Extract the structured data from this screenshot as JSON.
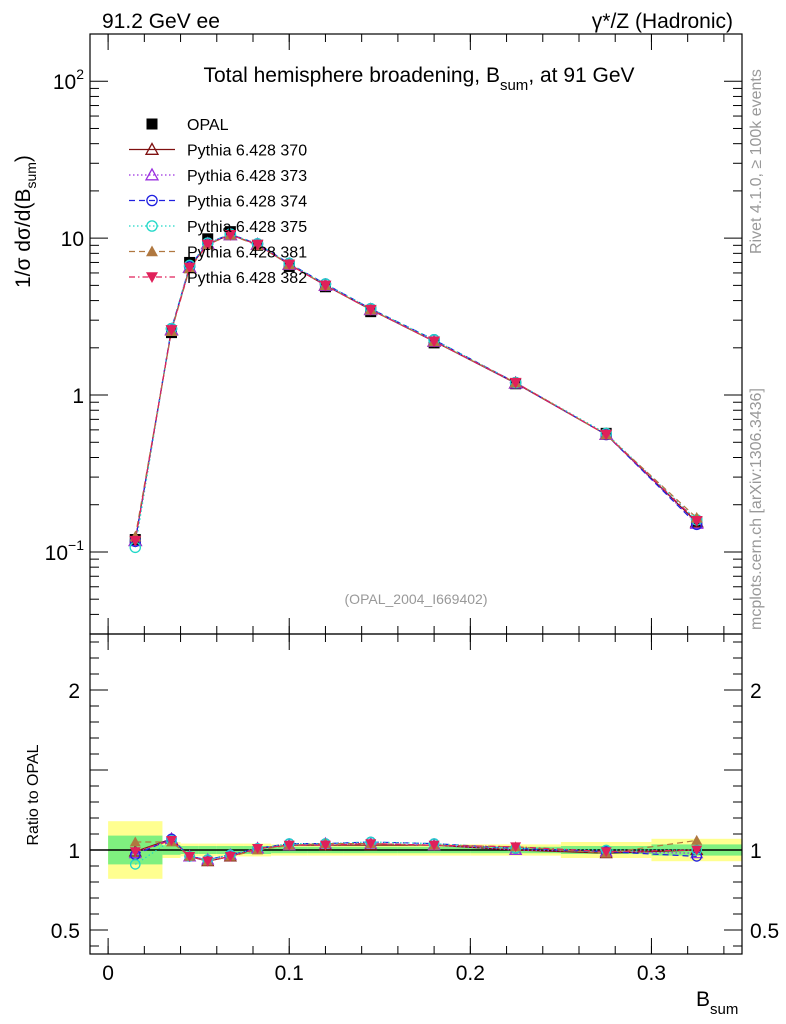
{
  "header": {
    "left": "91.2 GeV ee",
    "right": "γ*/Z (Hadronic)"
  },
  "side": {
    "rivet": "Rivet 4.1.0, ≥ 100k events",
    "mcplots": "mcplots.cern.ch [arXiv:1306.3436]"
  },
  "colors": {
    "data": "#000000",
    "p370": "#7f1010",
    "p373": "#9b30e0",
    "p374": "#2020e0",
    "p375": "#20d8c8",
    "p381": "#b07840",
    "p382": "#e0205a",
    "band_inner": "#7ff07f",
    "band_outer": "#ffff90"
  },
  "chart_data": [
    {
      "type": "line",
      "title": "Total hemisphere broadening, B",
      "title_sub": "sum",
      "title_tail": ", at 91 GeV",
      "ylabel_prefix": "1/σ   dσ/d(B",
      "ylabel_sub": "sum",
      "ylabel_tail": ")",
      "yscale": "log",
      "ylim": [
        0.03,
        200
      ],
      "xlim": [
        -0.01,
        0.35
      ],
      "ytick_labels": [
        {
          "value": 0.1,
          "base": "10",
          "exp": "−1"
        },
        {
          "value": 1,
          "base": "1",
          "exp": ""
        },
        {
          "value": 10,
          "base": "10",
          "exp": ""
        },
        {
          "value": 100,
          "base": "10",
          "exp": "2"
        }
      ],
      "watermark": "(OPAL_2004_I669402)",
      "x": [
        0.015,
        0.035,
        0.045,
        0.055,
        0.0675,
        0.0825,
        0.1,
        0.12,
        0.145,
        0.18,
        0.225,
        0.275,
        0.325
      ],
      "bin_edges": [
        0.0,
        0.03,
        0.04,
        0.05,
        0.06,
        0.075,
        0.09,
        0.11,
        0.13,
        0.16,
        0.2,
        0.25,
        0.3,
        0.35
      ],
      "series": [
        {
          "name": "OPAL",
          "key": "data",
          "marker": "square",
          "values": [
            0.12,
            2.5,
            7.0,
            9.9,
            11.0,
            9.0,
            6.6,
            4.9,
            3.4,
            2.15,
            1.18,
            0.57,
            0.155
          ]
        },
        {
          "name": "Pythia 6.428 370",
          "key": "p370",
          "marker": "triangle-open",
          "dash": "",
          "values": [
            0.118,
            2.6,
            6.5,
            9.2,
            10.5,
            9.1,
            6.8,
            5.0,
            3.5,
            2.2,
            1.19,
            0.56,
            0.155
          ]
        },
        {
          "name": "Pythia 6.428 373",
          "key": "p373",
          "marker": "triangle-open",
          "dash": "1.5,2.5",
          "values": [
            0.118,
            2.6,
            6.5,
            9.2,
            10.5,
            9.1,
            6.8,
            5.0,
            3.5,
            2.2,
            1.19,
            0.56,
            0.152
          ]
        },
        {
          "name": "Pythia 6.428 374",
          "key": "p374",
          "marker": "circle-open",
          "dash": "6,4",
          "values": [
            0.117,
            2.65,
            6.6,
            9.3,
            10.6,
            9.2,
            6.9,
            5.1,
            3.55,
            2.25,
            1.2,
            0.56,
            0.15
          ]
        },
        {
          "name": "Pythia 6.428 375",
          "key": "p375",
          "marker": "circle-open",
          "dash": "1.5,2.5",
          "values": [
            0.107,
            2.65,
            6.7,
            9.3,
            10.6,
            9.2,
            6.9,
            5.1,
            3.55,
            2.25,
            1.2,
            0.57,
            0.16
          ]
        },
        {
          "name": "Pythia 6.428 381",
          "key": "p381",
          "marker": "triangle-filled",
          "dash": "6,4",
          "values": [
            0.125,
            2.55,
            6.4,
            9.1,
            10.5,
            9.0,
            6.8,
            5.0,
            3.5,
            2.2,
            1.2,
            0.56,
            0.165
          ]
        },
        {
          "name": "Pythia 6.428 382",
          "key": "p382",
          "marker": "triangle-down-filled",
          "dash": "6,3,1.5,3",
          "values": [
            0.118,
            2.6,
            6.5,
            9.1,
            10.5,
            9.1,
            6.8,
            5.0,
            3.5,
            2.2,
            1.2,
            0.56,
            0.158
          ]
        }
      ]
    },
    {
      "type": "line",
      "ylabel": "Ratio to OPAL",
      "xlabel": "B",
      "xlabel_sub": "sum",
      "ylim": [
        0.35,
        2.35
      ],
      "xlim": [
        -0.01,
        0.35
      ],
      "yticks": [
        0.5,
        1,
        2
      ],
      "ytick_labels": [
        "0.5",
        "1",
        "2"
      ],
      "xticks": [
        0,
        0.1,
        0.2,
        0.3
      ],
      "xtick_labels": [
        "0",
        "0.1",
        "0.2",
        "0.3"
      ],
      "band_inner": [
        0.09,
        0.03,
        0.025,
        0.025,
        0.025,
        0.025,
        0.02,
        0.02,
        0.02,
        0.02,
        0.02,
        0.025,
        0.035
      ],
      "band_outer": [
        0.18,
        0.05,
        0.04,
        0.04,
        0.04,
        0.04,
        0.035,
        0.035,
        0.035,
        0.035,
        0.035,
        0.05,
        0.07
      ],
      "series": [
        {
          "key": "p370",
          "values": [
            0.99,
            1.07,
            0.96,
            0.93,
            0.96,
            1.01,
            1.03,
            1.03,
            1.03,
            1.03,
            1.0,
            0.98,
            1.0
          ]
        },
        {
          "key": "p373",
          "values": [
            0.98,
            1.07,
            0.96,
            0.94,
            0.97,
            1.01,
            1.03,
            1.04,
            1.04,
            1.03,
            1.0,
            0.99,
            0.98
          ]
        },
        {
          "key": "p374",
          "values": [
            0.97,
            1.07,
            0.96,
            0.94,
            0.97,
            1.01,
            1.04,
            1.04,
            1.05,
            1.04,
            1.01,
            0.99,
            0.96
          ]
        },
        {
          "key": "p375",
          "values": [
            0.91,
            1.06,
            0.96,
            0.94,
            0.97,
            1.01,
            1.04,
            1.04,
            1.05,
            1.04,
            1.01,
            1.0,
            1.0
          ]
        },
        {
          "key": "p381",
          "values": [
            1.05,
            1.05,
            0.96,
            0.93,
            0.96,
            1.0,
            1.03,
            1.04,
            1.04,
            1.03,
            1.02,
            0.98,
            1.06
          ]
        },
        {
          "key": "p382",
          "values": [
            0.99,
            1.06,
            0.96,
            0.93,
            0.96,
            1.01,
            1.03,
            1.03,
            1.04,
            1.03,
            1.02,
            0.99,
            1.0
          ]
        }
      ]
    }
  ]
}
